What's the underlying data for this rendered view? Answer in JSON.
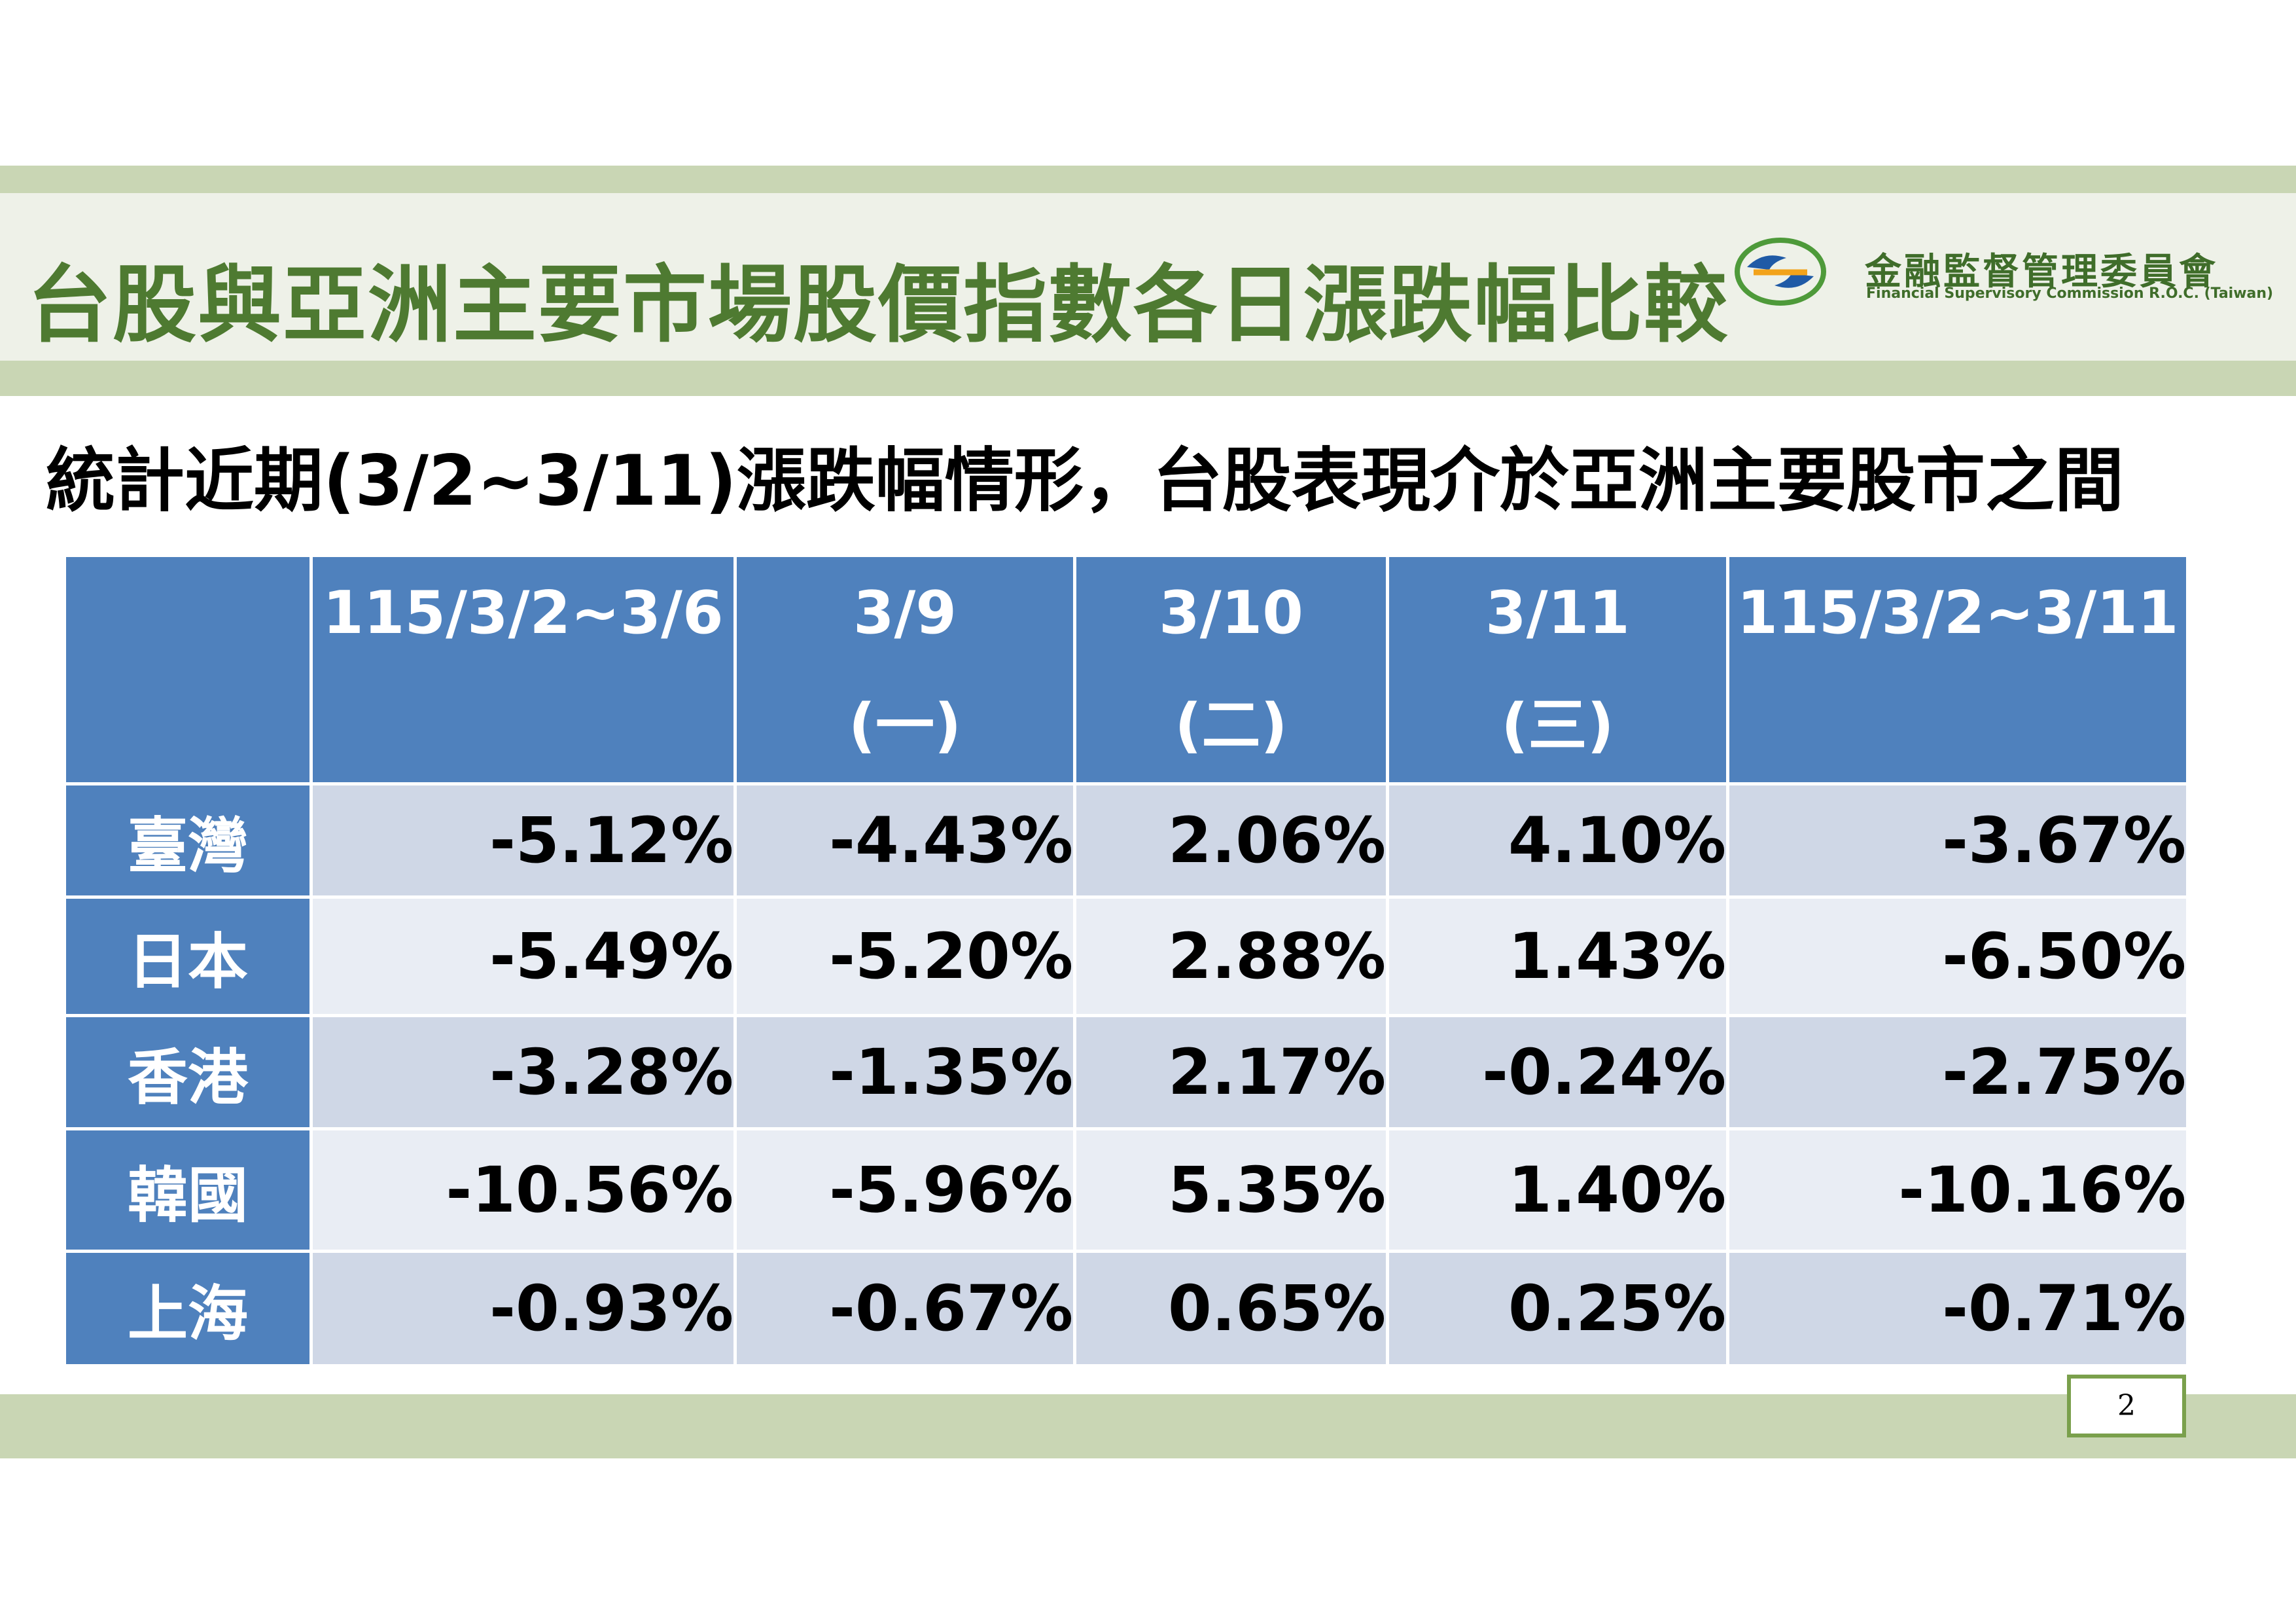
{
  "header": {
    "title": "台股與亞洲主要市場股價指數各日漲跌幅比較",
    "org_name": "金融監督管理委員會",
    "org_name_en": "Financial Supervisory Commission R.O.C. (Taiwan)"
  },
  "subtitle": "統計近期(3/2~3/11)漲跌幅情形，台股表現介於亞洲主要股市之間",
  "table": {
    "columns": [
      {
        "line1": "",
        "line2": ""
      },
      {
        "line1": "115/3/2~3/6",
        "line2": ""
      },
      {
        "line1": "3/9",
        "line2": "(一)"
      },
      {
        "line1": "3/10",
        "line2": "(二)"
      },
      {
        "line1": "3/11",
        "line2": "(三)"
      },
      {
        "line1": "115/3/2~3/11",
        "line2": ""
      }
    ],
    "rows": [
      {
        "market": "臺灣",
        "values": [
          "-5.12%",
          "-4.43%",
          "2.06%",
          "4.10%",
          "-3.67%"
        ]
      },
      {
        "market": "日本",
        "values": [
          "-5.49%",
          "-5.20%",
          "2.88%",
          "1.43%",
          "-6.50%"
        ]
      },
      {
        "market": "香港",
        "values": [
          "-3.28%",
          "-1.35%",
          "2.17%",
          "-0.24%",
          "-2.75%"
        ]
      },
      {
        "market": "韓國",
        "values": [
          "-10.56%",
          "-5.96%",
          "5.35%",
          "1.40%",
          "-10.16%"
        ]
      },
      {
        "market": "上海",
        "values": [
          "-0.93%",
          "-0.67%",
          "0.65%",
          "0.25%",
          "-0.71%"
        ]
      }
    ]
  },
  "footer": {
    "page_number": "2"
  },
  "colors": {
    "header_band": "#c9d6b4",
    "title_green": "#4e7a31",
    "table_header_blue": "#4f81bd",
    "row_odd": "#cfd7e6",
    "row_even": "#e9edf4"
  }
}
